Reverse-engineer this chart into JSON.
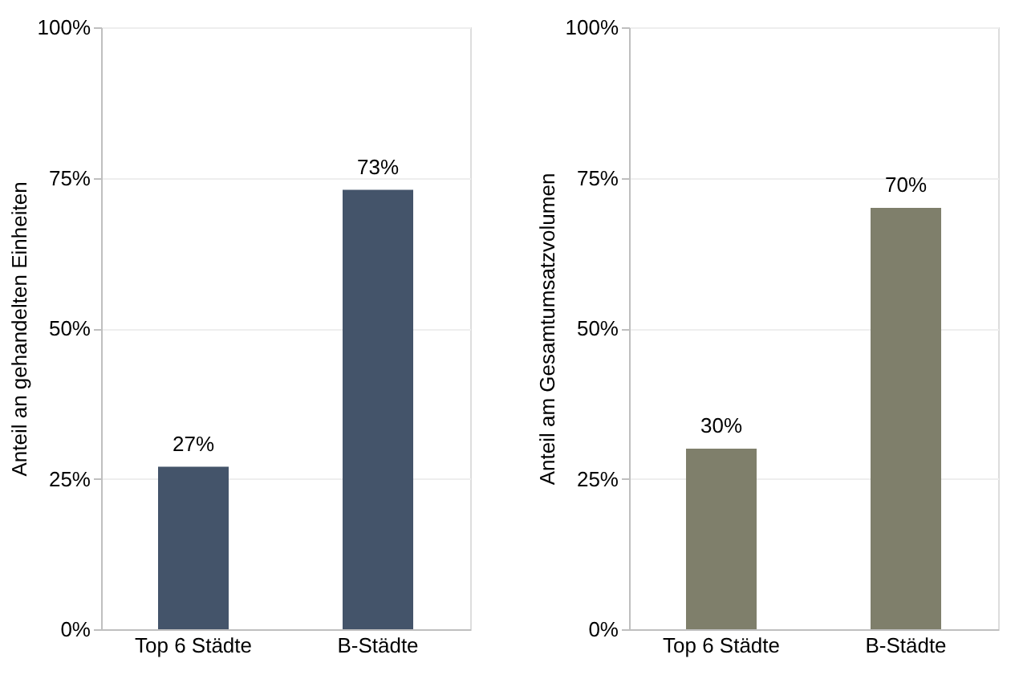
{
  "chart_data": [
    {
      "type": "bar",
      "ylabel": "Anteil an gehandelten Einheiten",
      "categories": [
        "Top 6 Städte",
        "B-Städte"
      ],
      "values": [
        27,
        73
      ],
      "color": "#44546a",
      "ylim": [
        0,
        100
      ],
      "yticks": [
        {
          "value": 0,
          "label": "0%"
        },
        {
          "value": 25,
          "label": "25%"
        },
        {
          "value": 50,
          "label": "50%"
        },
        {
          "value": 75,
          "label": "75%"
        },
        {
          "value": 100,
          "label": "100%"
        }
      ],
      "value_labels": [
        "27%",
        "73%"
      ],
      "grid": "y"
    },
    {
      "type": "bar",
      "ylabel": "Anteil am Gesamtumsatzvolumen",
      "categories": [
        "Top 6 Städte",
        "B-Städte"
      ],
      "values": [
        30,
        70
      ],
      "color": "#7f7f6b",
      "ylim": [
        0,
        100
      ],
      "yticks": [
        {
          "value": 0,
          "label": "0%"
        },
        {
          "value": 25,
          "label": "25%"
        },
        {
          "value": 50,
          "label": "50%"
        },
        {
          "value": 75,
          "label": "75%"
        },
        {
          "value": 100,
          "label": "100%"
        }
      ],
      "value_labels": [
        "30%",
        "70%"
      ],
      "grid": "y"
    }
  ]
}
